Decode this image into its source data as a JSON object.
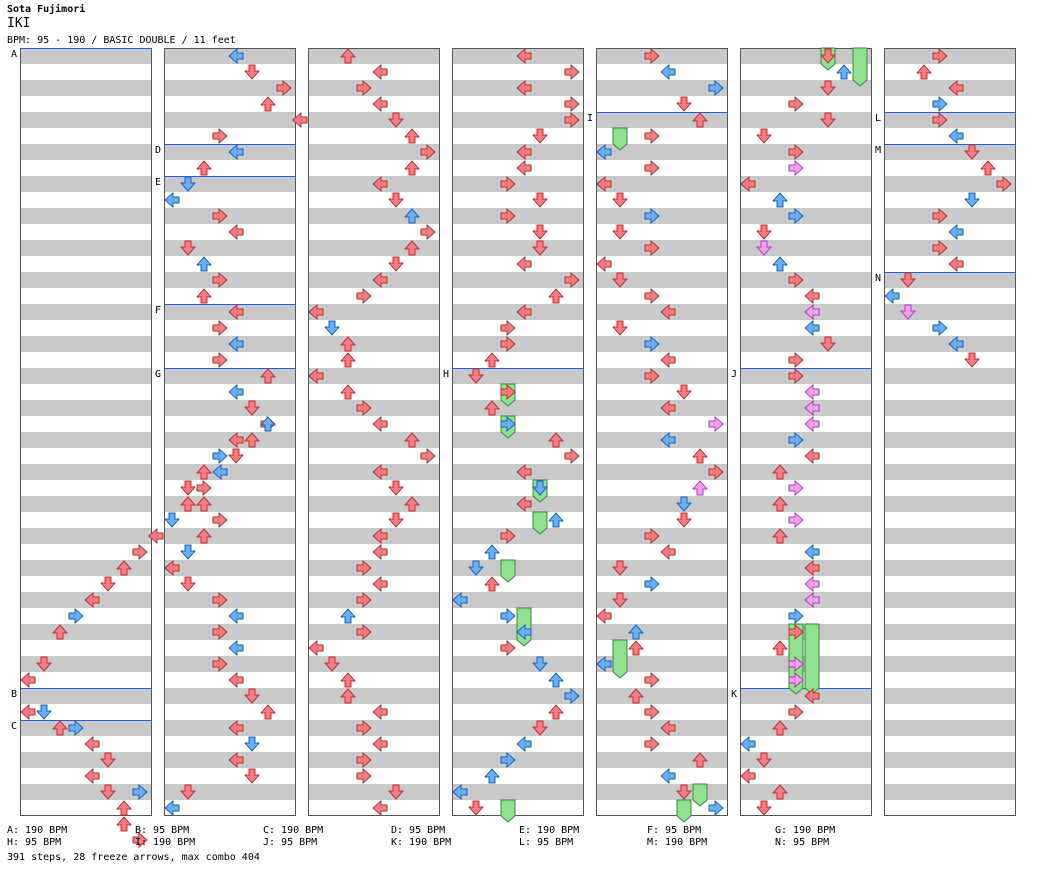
{
  "header": {
    "artist": "Sota Fujimori",
    "title": "IKI",
    "bpm_line": "BPM: 95 - 190 / BASIC DOUBLE / 11 feet"
  },
  "markers": [
    {
      "label": "A",
      "col": 0,
      "row": 0
    },
    {
      "label": "B",
      "col": 0,
      "row": 40
    },
    {
      "label": "C",
      "col": 0,
      "row": 42
    },
    {
      "label": "D",
      "col": 1,
      "row": 6
    },
    {
      "label": "E",
      "col": 1,
      "row": 8
    },
    {
      "label": "F",
      "col": 1,
      "row": 16
    },
    {
      "label": "G",
      "col": 1,
      "row": 20
    },
    {
      "label": "H",
      "col": 3,
      "row": 20
    },
    {
      "label": "I",
      "col": 4,
      "row": 4
    },
    {
      "label": "J",
      "col": 5,
      "row": 20
    },
    {
      "label": "K",
      "col": 5,
      "row": 40
    },
    {
      "label": "L",
      "col": 6,
      "row": 4
    },
    {
      "label": "M",
      "col": 6,
      "row": 6
    },
    {
      "label": "N",
      "col": 6,
      "row": 14
    }
  ],
  "legend": [
    "A: 190 BPM",
    "B: 95 BPM",
    "C: 190 BPM",
    "D: 95 BPM",
    "E: 190 BPM",
    "F: 95 BPM",
    "G: 190 BPM",
    "H: 95 BPM",
    "I: 190 BPM",
    "J: 95 BPM",
    "K: 190 BPM",
    "L: 95 BPM",
    "M: 190 BPM",
    "N: 95 BPM"
  ],
  "summary": "391 steps, 28 freeze arrows, max combo 404",
  "colors": {
    "red": "#f08080",
    "blue": "#6ab0f0",
    "pink": "#f0a0f0",
    "green": "#90e090",
    "band": "#c8c8c8",
    "marker_line": "#2060e0"
  },
  "notes": [
    [
      0,
      39,
      0,
      "r"
    ],
    [
      0,
      38,
      1,
      "r"
    ],
    [
      0,
      36,
      2,
      "r"
    ],
    [
      0,
      35,
      3,
      "b"
    ],
    [
      0,
      34,
      4,
      "r"
    ],
    [
      0,
      33,
      5,
      "r"
    ],
    [
      0,
      32,
      6,
      "r"
    ],
    [
      0,
      31,
      7,
      "r"
    ],
    [
      0,
      30,
      8,
      "r"
    ],
    [
      0,
      29,
      9,
      "b"
    ],
    [
      0,
      28,
      10,
      "r"
    ],
    [
      0,
      27,
      11,
      "r"
    ],
    [
      0,
      26,
      12,
      "b"
    ],
    [
      0,
      25,
      13,
      "r"
    ],
    [
      0,
      24,
      14,
      "r"
    ],
    [
      0,
      23,
      15,
      "r"
    ],
    [
      0,
      41,
      0,
      "r"
    ],
    [
      0,
      41,
      1,
      "b"
    ],
    [
      0,
      42,
      2,
      "r"
    ],
    [
      0,
      42,
      3,
      "b"
    ],
    [
      0,
      43,
      4,
      "r"
    ],
    [
      0,
      44,
      5,
      "r"
    ],
    [
      0,
      45,
      4,
      "r"
    ],
    [
      0,
      46,
      5,
      "r"
    ],
    [
      0,
      47,
      6,
      "r"
    ],
    [
      0,
      46,
      7,
      "b"
    ],
    [
      0,
      48,
      6,
      "r"
    ],
    [
      0,
      49,
      7,
      "r"
    ],
    [
      1,
      0,
      4,
      "b"
    ],
    [
      1,
      1,
      5,
      "r"
    ],
    [
      1,
      2,
      7,
      "r"
    ],
    [
      1,
      3,
      6,
      "r"
    ],
    [
      1,
      4,
      8,
      "r"
    ],
    [
      1,
      5,
      3,
      "r"
    ],
    [
      1,
      6,
      4,
      "b"
    ],
    [
      1,
      7,
      2,
      "r"
    ],
    [
      1,
      8,
      1,
      "b"
    ],
    [
      1,
      9,
      0,
      "b"
    ],
    [
      1,
      10,
      3,
      "r"
    ],
    [
      1,
      11,
      4,
      "r"
    ],
    [
      1,
      12,
      1,
      "r"
    ],
    [
      1,
      13,
      2,
      "b"
    ],
    [
      1,
      14,
      3,
      "r"
    ],
    [
      1,
      15,
      2,
      "r"
    ],
    [
      1,
      16,
      4,
      "r"
    ],
    [
      1,
      17,
      3,
      "r"
    ],
    [
      1,
      18,
      4,
      "b"
    ],
    [
      1,
      19,
      3,
      "r"
    ],
    [
      1,
      20,
      6,
      "r"
    ],
    [
      1,
      21,
      4,
      "b"
    ],
    [
      1,
      22,
      5,
      "r"
    ],
    [
      1,
      23,
      6,
      "b"
    ],
    [
      1,
      24,
      4,
      "r"
    ],
    [
      1,
      25,
      3,
      "b"
    ],
    [
      1,
      26,
      2,
      "r"
    ],
    [
      1,
      27,
      1,
      "r"
    ],
    [
      1,
      28,
      2,
      "r"
    ],
    [
      1,
      29,
      3,
      "r"
    ],
    [
      1,
      30,
      2,
      "r"
    ],
    [
      1,
      31,
      1,
      "b"
    ],
    [
      1,
      32,
      0,
      "r"
    ],
    [
      1,
      33,
      1,
      "r"
    ],
    [
      1,
      34,
      3,
      "r"
    ],
    [
      1,
      35,
      4,
      "b"
    ],
    [
      1,
      36,
      3,
      "r"
    ],
    [
      1,
      37,
      4,
      "b"
    ],
    [
      1,
      38,
      3,
      "r"
    ],
    [
      1,
      39,
      4,
      "r"
    ],
    [
      1,
      40,
      5,
      "r"
    ],
    [
      1,
      41,
      6,
      "r"
    ],
    [
      1,
      42,
      4,
      "r"
    ],
    [
      1,
      43,
      5,
      "b"
    ],
    [
      1,
      44,
      4,
      "r"
    ],
    [
      1,
      45,
      5,
      "r"
    ],
    [
      1,
      46,
      1,
      "r"
    ],
    [
      1,
      47,
      0,
      "b"
    ],
    [
      2,
      0,
      2,
      "r"
    ],
    [
      2,
      1,
      4,
      "r"
    ],
    [
      2,
      2,
      3,
      "r"
    ],
    [
      2,
      3,
      4,
      "r"
    ],
    [
      2,
      4,
      5,
      "r"
    ],
    [
      2,
      5,
      6,
      "r"
    ],
    [
      2,
      6,
      7,
      "r"
    ],
    [
      2,
      7,
      6,
      "r"
    ],
    [
      2,
      8,
      4,
      "r"
    ],
    [
      2,
      9,
      5,
      "r"
    ],
    [
      2,
      10,
      6,
      "b"
    ],
    [
      2,
      11,
      7,
      "r"
    ],
    [
      2,
      12,
      6,
      "r"
    ],
    [
      2,
      13,
      5,
      "r"
    ],
    [
      2,
      14,
      4,
      "r"
    ],
    [
      2,
      15,
      3,
      "r"
    ],
    [
      2,
      16,
      0,
      "r"
    ],
    [
      2,
      17,
      1,
      "b"
    ],
    [
      2,
      18,
      2,
      "r"
    ],
    [
      2,
      19,
      2,
      "r"
    ],
    [
      2,
      20,
      0,
      "r"
    ],
    [
      2,
      21,
      2,
      "r"
    ],
    [
      2,
      22,
      3,
      "r"
    ],
    [
      2,
      23,
      4,
      "r"
    ],
    [
      2,
      24,
      6,
      "r"
    ],
    [
      2,
      25,
      7,
      "r"
    ],
    [
      2,
      26,
      4,
      "r"
    ],
    [
      2,
      27,
      5,
      "r"
    ],
    [
      2,
      28,
      6,
      "r"
    ],
    [
      2,
      29,
      5,
      "r"
    ],
    [
      2,
      30,
      4,
      "r"
    ],
    [
      2,
      31,
      4,
      "r"
    ],
    [
      2,
      32,
      3,
      "r"
    ],
    [
      2,
      33,
      4,
      "r"
    ],
    [
      2,
      34,
      3,
      "r"
    ],
    [
      2,
      35,
      2,
      "b"
    ],
    [
      2,
      36,
      3,
      "r"
    ],
    [
      2,
      37,
      0,
      "r"
    ],
    [
      2,
      38,
      1,
      "r"
    ],
    [
      2,
      39,
      2,
      "r"
    ],
    [
      2,
      40,
      2,
      "r"
    ],
    [
      2,
      41,
      4,
      "r"
    ],
    [
      2,
      42,
      3,
      "r"
    ],
    [
      2,
      43,
      4,
      "r"
    ],
    [
      2,
      44,
      3,
      "r"
    ],
    [
      2,
      45,
      3,
      "r"
    ],
    [
      2,
      46,
      5,
      "r"
    ],
    [
      2,
      47,
      4,
      "r"
    ],
    [
      3,
      0,
      4,
      "r"
    ],
    [
      3,
      1,
      7,
      "r"
    ],
    [
      3,
      2,
      4,
      "r"
    ],
    [
      3,
      3,
      7,
      "r"
    ],
    [
      3,
      4,
      7,
      "r"
    ],
    [
      3,
      5,
      5,
      "r"
    ],
    [
      3,
      6,
      4,
      "r"
    ],
    [
      3,
      7,
      4,
      "r"
    ],
    [
      3,
      8,
      3,
      "r"
    ],
    [
      3,
      9,
      5,
      "r"
    ],
    [
      3,
      10,
      3,
      "r"
    ],
    [
      3,
      11,
      5,
      "r"
    ],
    [
      3,
      12,
      5,
      "r"
    ],
    [
      3,
      13,
      4,
      "r"
    ],
    [
      3,
      14,
      7,
      "r"
    ],
    [
      3,
      15,
      6,
      "r"
    ],
    [
      3,
      16,
      4,
      "r"
    ],
    [
      3,
      17,
      3,
      "r"
    ],
    [
      3,
      18,
      3,
      "r"
    ],
    [
      3,
      19,
      2,
      "r"
    ],
    [
      3,
      20,
      1,
      "r"
    ],
    [
      3,
      21,
      3,
      "r"
    ],
    [
      3,
      22,
      2,
      "r"
    ],
    [
      3,
      23,
      3,
      "b"
    ],
    [
      3,
      24,
      6,
      "r"
    ],
    [
      3,
      25,
      7,
      "r"
    ],
    [
      3,
      26,
      4,
      "r"
    ],
    [
      3,
      27,
      5,
      "b"
    ],
    [
      3,
      28,
      4,
      "r"
    ],
    [
      3,
      29,
      6,
      "b"
    ],
    [
      3,
      30,
      3,
      "r"
    ],
    [
      3,
      31,
      2,
      "b"
    ],
    [
      3,
      32,
      1,
      "b"
    ],
    [
      3,
      33,
      2,
      "r"
    ],
    [
      3,
      34,
      0,
      "b"
    ],
    [
      3,
      35,
      3,
      "b"
    ],
    [
      3,
      36,
      4,
      "b"
    ],
    [
      3,
      37,
      3,
      "r"
    ],
    [
      3,
      38,
      5,
      "b"
    ],
    [
      3,
      39,
      6,
      "b"
    ],
    [
      3,
      40,
      7,
      "b"
    ],
    [
      3,
      41,
      6,
      "r"
    ],
    [
      3,
      42,
      5,
      "r"
    ],
    [
      3,
      43,
      4,
      "b"
    ],
    [
      3,
      44,
      3,
      "b"
    ],
    [
      3,
      45,
      2,
      "b"
    ],
    [
      3,
      46,
      0,
      "b"
    ],
    [
      3,
      47,
      1,
      "r"
    ],
    [
      4,
      0,
      3,
      "r"
    ],
    [
      4,
      1,
      4,
      "b"
    ],
    [
      4,
      2,
      7,
      "b"
    ],
    [
      4,
      3,
      5,
      "r"
    ],
    [
      4,
      4,
      6,
      "r"
    ],
    [
      4,
      5,
      3,
      "r"
    ],
    [
      4,
      6,
      0,
      "b"
    ],
    [
      4,
      7,
      3,
      "r"
    ],
    [
      4,
      8,
      0,
      "r"
    ],
    [
      4,
      9,
      1,
      "r"
    ],
    [
      4,
      10,
      3,
      "b"
    ],
    [
      4,
      11,
      1,
      "r"
    ],
    [
      4,
      12,
      3,
      "r"
    ],
    [
      4,
      13,
      0,
      "r"
    ],
    [
      4,
      14,
      1,
      "r"
    ],
    [
      4,
      15,
      3,
      "r"
    ],
    [
      4,
      16,
      4,
      "r"
    ],
    [
      4,
      17,
      1,
      "r"
    ],
    [
      4,
      18,
      3,
      "b"
    ],
    [
      4,
      19,
      4,
      "r"
    ],
    [
      4,
      20,
      3,
      "r"
    ],
    [
      4,
      21,
      5,
      "r"
    ],
    [
      4,
      22,
      4,
      "r"
    ],
    [
      4,
      23,
      7,
      "p"
    ],
    [
      4,
      24,
      4,
      "b"
    ],
    [
      4,
      25,
      6,
      "r"
    ],
    [
      4,
      26,
      7,
      "r"
    ],
    [
      4,
      27,
      6,
      "p"
    ],
    [
      4,
      28,
      5,
      "b"
    ],
    [
      4,
      29,
      5,
      "r"
    ],
    [
      4,
      30,
      3,
      "r"
    ],
    [
      4,
      31,
      4,
      "r"
    ],
    [
      4,
      32,
      1,
      "r"
    ],
    [
      4,
      33,
      3,
      "b"
    ],
    [
      4,
      34,
      1,
      "r"
    ],
    [
      4,
      35,
      0,
      "r"
    ],
    [
      4,
      36,
      2,
      "b"
    ],
    [
      4,
      37,
      2,
      "r"
    ],
    [
      4,
      38,
      0,
      "b"
    ],
    [
      4,
      39,
      3,
      "r"
    ],
    [
      4,
      40,
      2,
      "r"
    ],
    [
      4,
      41,
      3,
      "r"
    ],
    [
      4,
      42,
      4,
      "r"
    ],
    [
      4,
      43,
      3,
      "r"
    ],
    [
      4,
      44,
      6,
      "r"
    ],
    [
      4,
      45,
      4,
      "b"
    ],
    [
      4,
      46,
      5,
      "r"
    ],
    [
      4,
      47,
      7,
      "b"
    ],
    [
      5,
      0,
      5,
      "r"
    ],
    [
      5,
      1,
      6,
      "b"
    ],
    [
      5,
      2,
      5,
      "r"
    ],
    [
      5,
      3,
      3,
      "r"
    ],
    [
      5,
      4,
      5,
      "r"
    ],
    [
      5,
      5,
      1,
      "r"
    ],
    [
      5,
      6,
      3,
      "r"
    ],
    [
      5,
      7,
      3,
      "p"
    ],
    [
      5,
      8,
      0,
      "r"
    ],
    [
      5,
      9,
      2,
      "b"
    ],
    [
      5,
      10,
      3,
      "b"
    ],
    [
      5,
      11,
      1,
      "r"
    ],
    [
      5,
      12,
      1,
      "p"
    ],
    [
      5,
      13,
      2,
      "b"
    ],
    [
      5,
      14,
      3,
      "r"
    ],
    [
      5,
      15,
      4,
      "r"
    ],
    [
      5,
      16,
      4,
      "p"
    ],
    [
      5,
      17,
      4,
      "b"
    ],
    [
      5,
      18,
      5,
      "r"
    ],
    [
      5,
      19,
      3,
      "r"
    ],
    [
      5,
      20,
      3,
      "r"
    ],
    [
      5,
      21,
      4,
      "p"
    ],
    [
      5,
      22,
      4,
      "p"
    ],
    [
      5,
      23,
      4,
      "p"
    ],
    [
      5,
      24,
      3,
      "b"
    ],
    [
      5,
      25,
      4,
      "r"
    ],
    [
      5,
      26,
      2,
      "r"
    ],
    [
      5,
      27,
      3,
      "p"
    ],
    [
      5,
      28,
      2,
      "r"
    ],
    [
      5,
      29,
      3,
      "p"
    ],
    [
      5,
      30,
      2,
      "r"
    ],
    [
      5,
      31,
      4,
      "b"
    ],
    [
      5,
      32,
      4,
      "r"
    ],
    [
      5,
      33,
      4,
      "p"
    ],
    [
      5,
      34,
      4,
      "p"
    ],
    [
      5,
      35,
      3,
      "b"
    ],
    [
      5,
      36,
      3,
      "r"
    ],
    [
      5,
      37,
      2,
      "r"
    ],
    [
      5,
      38,
      3,
      "p"
    ],
    [
      5,
      39,
      3,
      "p"
    ],
    [
      5,
      40,
      4,
      "r"
    ],
    [
      5,
      41,
      3,
      "r"
    ],
    [
      5,
      42,
      2,
      "r"
    ],
    [
      5,
      43,
      0,
      "b"
    ],
    [
      5,
      44,
      1,
      "r"
    ],
    [
      5,
      45,
      0,
      "r"
    ],
    [
      5,
      46,
      2,
      "r"
    ],
    [
      5,
      47,
      1,
      "r"
    ],
    [
      6,
      0,
      3,
      "r"
    ],
    [
      6,
      1,
      2,
      "r"
    ],
    [
      6,
      2,
      4,
      "r"
    ],
    [
      6,
      3,
      3,
      "b"
    ],
    [
      6,
      4,
      3,
      "r"
    ],
    [
      6,
      5,
      4,
      "b"
    ],
    [
      6,
      6,
      5,
      "r"
    ],
    [
      6,
      7,
      6,
      "r"
    ],
    [
      6,
      8,
      7,
      "r"
    ],
    [
      6,
      9,
      5,
      "b"
    ],
    [
      6,
      10,
      3,
      "r"
    ],
    [
      6,
      11,
      4,
      "b"
    ],
    [
      6,
      12,
      3,
      "r"
    ],
    [
      6,
      13,
      4,
      "r"
    ],
    [
      6,
      14,
      1,
      "r"
    ],
    [
      6,
      15,
      0,
      "b"
    ],
    [
      6,
      16,
      1,
      "p"
    ],
    [
      6,
      17,
      3,
      "b"
    ],
    [
      6,
      18,
      4,
      "b"
    ],
    [
      6,
      19,
      5,
      "r"
    ]
  ],
  "freezes": [
    [
      3,
      21,
      3,
      1
    ],
    [
      3,
      23,
      3,
      1
    ],
    [
      3,
      27,
      5,
      1
    ],
    [
      3,
      29,
      5,
      1
    ],
    [
      3,
      32,
      3,
      1
    ],
    [
      3,
      35,
      4,
      2
    ],
    [
      3,
      47,
      3,
      1
    ],
    [
      4,
      5,
      1,
      1
    ],
    [
      4,
      37,
      1,
      2
    ],
    [
      4,
      47,
      5,
      1
    ],
    [
      4,
      46,
      6,
      1
    ],
    [
      5,
      0,
      5,
      1
    ],
    [
      5,
      0,
      7,
      2
    ],
    [
      5,
      36,
      3,
      4
    ],
    [
      5,
      36,
      4,
      4
    ]
  ]
}
